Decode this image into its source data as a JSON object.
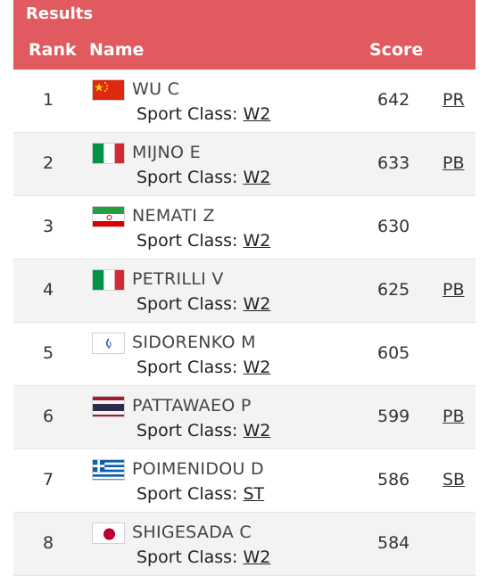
{
  "header": {
    "title": "Results",
    "rank_label": "Rank",
    "name_label": "Name",
    "score_label": "Score"
  },
  "rows": [
    {
      "rank": "1",
      "name": "WU C",
      "sport_label": "Sport Class:",
      "sport_class": "W2",
      "score": "642",
      "record": "PR",
      "flag": "china-flag-icon"
    },
    {
      "rank": "2",
      "name": "MIJNO E",
      "sport_label": "Sport Class:",
      "sport_class": "W2",
      "score": "633",
      "record": "PB",
      "flag": "italy-flag-icon"
    },
    {
      "rank": "3",
      "name": "NEMATI Z",
      "sport_label": "Sport Class:",
      "sport_class": "W2",
      "score": "630",
      "record": "",
      "flag": "iran-flag-icon"
    },
    {
      "rank": "4",
      "name": "PETRILLI V",
      "sport_label": "Sport Class:",
      "sport_class": "W2",
      "score": "625",
      "record": "PB",
      "flag": "italy-flag-icon"
    },
    {
      "rank": "5",
      "name": "SIDORENKO M",
      "sport_label": "Sport Class:",
      "sport_class": "W2",
      "score": "605",
      "record": "",
      "flag": "paralympic-flag-icon"
    },
    {
      "rank": "6",
      "name": "PATTAWAEO P",
      "sport_label": "Sport Class:",
      "sport_class": "W2",
      "score": "599",
      "record": "PB",
      "flag": "thailand-flag-icon"
    },
    {
      "rank": "7",
      "name": "POIMENIDOU D",
      "sport_label": "Sport Class:",
      "sport_class": "ST",
      "score": "586",
      "record": "SB",
      "flag": "greece-flag-icon"
    },
    {
      "rank": "8",
      "name": "SHIGESADA C",
      "sport_label": "Sport Class:",
      "sport_class": "W2",
      "score": "584",
      "record": "",
      "flag": "japan-flag-icon"
    }
  ],
  "colors": {
    "header_bg": "#e05a5f",
    "row_alt_bg": "#f3f3f3"
  }
}
